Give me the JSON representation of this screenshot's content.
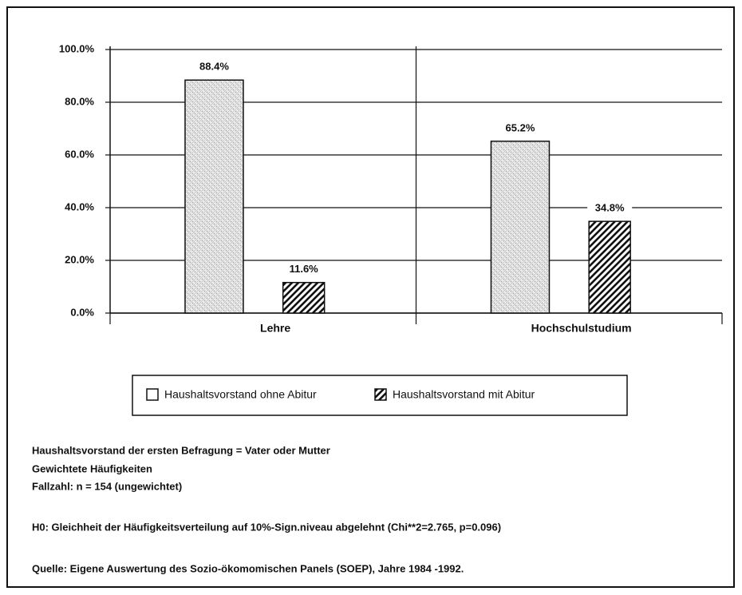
{
  "chart_data": {
    "type": "bar",
    "categories": [
      "Lehre",
      "Hochschulstudium"
    ],
    "series": [
      {
        "name": "Haushaltsvorstand ohne Abitur",
        "color": "#b0b0b0",
        "values": [
          88.4,
          65.2
        ],
        "value_labels": [
          "88.4%",
          "65.2%"
        ]
      },
      {
        "name": "Haushaltsvorstand mit Abitur",
        "color": "#111111",
        "values": [
          11.6,
          34.8
        ],
        "value_labels": [
          "11.6%",
          "34.8%"
        ]
      }
    ],
    "ylim": [
      0,
      100
    ],
    "yticks": [
      {
        "value": 0,
        "label": "0.0%"
      },
      {
        "value": 20,
        "label": "20.0%"
      },
      {
        "value": 40,
        "label": "40.0%"
      },
      {
        "value": 60,
        "label": "60.0%"
      },
      {
        "value": 80,
        "label": "80.0%"
      },
      {
        "value": 100,
        "label": "100.0%"
      }
    ],
    "grid": true,
    "legend": "bottom",
    "annotations": [
      "Haushaltsvorstand  der ersten Befragung = Vater oder Mutter",
      "Gewichtete Häufigkeiten",
      "Fallzahl: n = 154 (ungewichtet)",
      "H0: Gleichheit der Häufigkeitsverteilung auf 10%-Sign.niveau abgelehnt (Chi**2=2.765, p=0.096)",
      "Quelle: Eigene Auswertung des Sozio-ökomomischen Panels (SOEP), Jahre 1984 -1992."
    ]
  }
}
